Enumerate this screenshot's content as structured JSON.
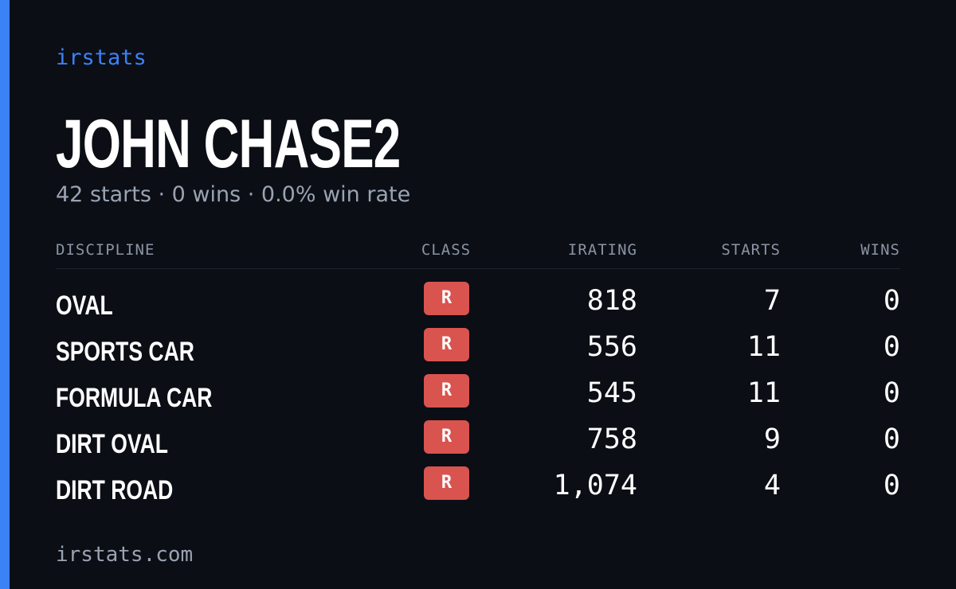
{
  "brand": "irstats",
  "driver": {
    "name": "JOHN CHASE2",
    "summary": "42 starts · 0 wins · 0.0% win rate"
  },
  "table": {
    "headers": [
      "DISCIPLINE",
      "CLASS",
      "IRATING",
      "STARTS",
      "WINS"
    ],
    "rows": [
      [
        "OVAL",
        "R",
        "818",
        "7",
        "0"
      ],
      [
        "SPORTS CAR",
        "R",
        "556",
        "11",
        "0"
      ],
      [
        "FORMULA CAR",
        "R",
        "545",
        "11",
        "0"
      ],
      [
        "DIRT OVAL",
        "R",
        "758",
        "9",
        "0"
      ],
      [
        "DIRT ROAD",
        "R",
        "1,074",
        "4",
        "0"
      ]
    ]
  },
  "footer": "irstats.com"
}
